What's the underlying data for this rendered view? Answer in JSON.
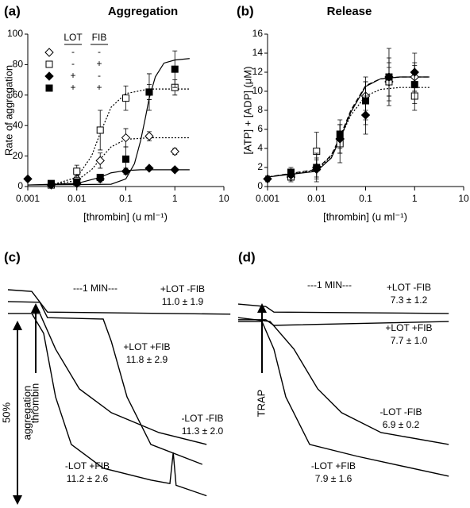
{
  "chart_data": [
    {
      "type": "scatter",
      "panel": "(a)",
      "title": "Aggregation",
      "x_label": "[thrombin] (u ml⁻¹)",
      "y_label": "Rate of aggregation",
      "log_x": true,
      "xlim": [
        0.001,
        10
      ],
      "ylim": [
        0,
        100
      ],
      "xticks": [
        0.001,
        0.01,
        0.1,
        1,
        10
      ],
      "yticks": [
        0,
        20,
        40,
        60,
        80,
        100
      ],
      "legend_headers": [
        "LOT",
        "FIB"
      ],
      "series": [
        {
          "marker": "diamond",
          "filled": false,
          "color": "#000000",
          "lot": "-",
          "fib": "-",
          "x": [
            0.01,
            0.03,
            0.1,
            0.3,
            1
          ],
          "values": [
            5,
            17,
            32,
            33,
            23
          ],
          "errors": [
            2,
            5,
            6,
            3,
            2
          ]
        },
        {
          "marker": "square",
          "filled": false,
          "color": "#000000",
          "lot": "-",
          "fib": "+",
          "x": [
            0.003,
            0.01,
            0.03,
            0.1,
            0.3,
            1
          ],
          "values": [
            1,
            10,
            37,
            58,
            62,
            65
          ],
          "errors": [
            1,
            4,
            13,
            8,
            5,
            5
          ]
        },
        {
          "marker": "diamond",
          "filled": true,
          "color": "#000000",
          "lot": "+",
          "fib": "-",
          "x": [
            0.001,
            0.003,
            0.01,
            0.03,
            0.1,
            0.3,
            1
          ],
          "values": [
            5,
            1,
            2,
            5,
            10,
            12,
            11
          ],
          "errors": [
            1,
            1,
            1,
            2,
            2,
            1,
            1
          ]
        },
        {
          "marker": "square",
          "filled": true,
          "color": "#000000",
          "lot": "+",
          "fib": "+",
          "x": [
            0.003,
            0.01,
            0.03,
            0.1,
            0.3,
            1
          ],
          "values": [
            2,
            3,
            6,
            18,
            62,
            77
          ],
          "errors": [
            1,
            2,
            2,
            8,
            12,
            12
          ]
        }
      ],
      "fits": [
        {
          "style": "dotted",
          "x": [
            0.003,
            0.01,
            0.02,
            0.03,
            0.05,
            0.1,
            0.3,
            2
          ],
          "values": [
            1,
            6,
            20,
            35,
            52,
            61,
            64,
            64
          ]
        },
        {
          "style": "dotted",
          "x": [
            0.003,
            0.01,
            0.02,
            0.03,
            0.05,
            0.1,
            0.3,
            2
          ],
          "values": [
            1,
            4,
            11,
            18,
            26,
            31,
            32,
            32
          ]
        },
        {
          "style": "solid",
          "x": [
            0.001,
            0.05,
            0.1,
            0.15,
            0.2,
            0.25,
            0.3,
            0.4,
            0.6,
            1,
            2
          ],
          "values": [
            1,
            1.5,
            5,
            15,
            30,
            45,
            58,
            72,
            81,
            83,
            84
          ]
        },
        {
          "style": "solid",
          "x": [
            0.001,
            0.01,
            0.03,
            0.05,
            0.1,
            0.2,
            2
          ],
          "values": [
            1,
            2,
            6,
            9,
            10.5,
            11,
            11
          ]
        }
      ]
    },
    {
      "type": "scatter",
      "panel": "(b)",
      "title": "Release",
      "x_label": "[thrombin] (u ml⁻¹)",
      "y_label": "[ATP] + [ADP] (μM)",
      "log_x": true,
      "xlim": [
        0.001,
        10
      ],
      "ylim": [
        0,
        16
      ],
      "xticks": [
        0.001,
        0.01,
        0.1,
        1,
        10
      ],
      "yticks": [
        0,
        2,
        4,
        6,
        8,
        10,
        12,
        14,
        16
      ],
      "series": [
        {
          "marker": "diamond",
          "filled": false,
          "color": "#000000",
          "x": [
            0.003,
            0.01,
            0.03,
            0.1,
            0.3,
            1
          ],
          "values": [
            1,
            2,
            5,
            9.5,
            11,
            11.5
          ],
          "errors": [
            0.3,
            1,
            1.5,
            1.5,
            1.5,
            1.5
          ]
        },
        {
          "marker": "square",
          "filled": false,
          "color": "#000000",
          "x": [
            0.003,
            0.01,
            0.03,
            0.1,
            0.3,
            1
          ],
          "values": [
            1,
            3.7,
            4.5,
            9,
            11,
            9.5
          ],
          "errors": [
            0.5,
            2,
            2,
            2.5,
            2,
            1.5
          ]
        },
        {
          "marker": "diamond",
          "filled": true,
          "color": "#000000",
          "x": [
            0.001,
            0.003,
            0.01,
            0.03,
            0.1,
            0.3,
            1
          ],
          "values": [
            0.8,
            1.2,
            1.8,
            5,
            7.5,
            11.5,
            12
          ],
          "errors": [
            0.3,
            0.5,
            1,
            1.5,
            2,
            2,
            2
          ]
        },
        {
          "marker": "square",
          "filled": true,
          "color": "#000000",
          "x": [
            0.003,
            0.01,
            0.03,
            0.1,
            0.3,
            1
          ],
          "values": [
            1.5,
            2,
            5.5,
            9,
            11.5,
            10.7
          ],
          "errors": [
            0.5,
            1.5,
            1.5,
            2,
            3,
            2
          ]
        }
      ],
      "fits": [
        {
          "style": "solid",
          "x": [
            0.001,
            0.01,
            0.02,
            0.03,
            0.05,
            0.1,
            0.2,
            0.5,
            2
          ],
          "values": [
            1,
            1.6,
            3,
            5,
            7.8,
            10.5,
            11.3,
            11.5,
            11.5
          ]
        },
        {
          "style": "dashed",
          "x": [
            0.001,
            0.01,
            0.02,
            0.03,
            0.05,
            0.1,
            0.2,
            0.5,
            2
          ],
          "values": [
            1,
            1.8,
            3.3,
            5.2,
            8,
            10.6,
            11.3,
            11.5,
            11.5
          ]
        },
        {
          "style": "dotted",
          "x": [
            0.001,
            0.01,
            0.02,
            0.03,
            0.05,
            0.1,
            0.2,
            0.5,
            2
          ],
          "values": [
            1,
            1.7,
            3.2,
            5,
            7.5,
            9.5,
            10.2,
            10.4,
            10.4
          ]
        }
      ]
    },
    {
      "type": "trace",
      "panel": "(c)",
      "time_label": "---1 MIN---",
      "stimulus": "thrombin",
      "xlim": [
        0,
        4.75
      ],
      "ylim": [
        62,
        0
      ],
      "scale_bar": {
        "value": 50,
        "label": "50%",
        "text": "aggregation"
      },
      "series": [
        {
          "name": "+LOT -FIB",
          "rate_label": "11.0 ± 1.9",
          "color": "#000000",
          "x": [
            0,
            0.5,
            0.83,
            4.67
          ],
          "values": [
            0,
            0.5,
            6.4,
            7
          ]
        },
        {
          "name": "+LOT +FIB",
          "rate_label": "11.8 ± 2.9",
          "color": "#000000",
          "x": [
            0,
            0.67,
            0.83,
            2,
            2.17,
            2.5,
            3,
            4.08
          ],
          "values": [
            3.4,
            3.6,
            8,
            8.4,
            14.8,
            30.7,
            44.3,
            50
          ]
        },
        {
          "name": "-LOT -FIB",
          "rate_label": "11.3 ± 2.0",
          "color": "#000000",
          "x": [
            0,
            0.67,
            1,
            1.5,
            2.17,
            3.17,
            4.17
          ],
          "values": [
            6.8,
            6.8,
            17,
            28.4,
            35.2,
            40.9,
            44.3
          ]
        },
        {
          "name": "-LOT +FIB",
          "rate_label": "11.2 ± 2.6",
          "color": "#000000",
          "x": [
            0.5,
            0.75,
            1,
            1.33,
            2,
            3,
            3.4,
            3.47,
            3.53,
            4.17
          ],
          "values": [
            6.8,
            12.5,
            30.7,
            44.3,
            51.1,
            54.5,
            55.5,
            46.6,
            56,
            59
          ]
        }
      ]
    },
    {
      "type": "trace",
      "panel": "(d)",
      "time_label": "---1 MIN---",
      "stimulus": "TRAP",
      "xlim": [
        0,
        4.75
      ],
      "ylim": [
        62,
        0
      ],
      "series": [
        {
          "name": "+LOT -FIB",
          "rate_label": "7.3 ± 1.2",
          "color": "#000000",
          "x": [
            0,
            0.58,
            0.75,
            4.42
          ],
          "values": [
            4.1,
            4.8,
            6.4,
            6.8
          ]
        },
        {
          "name": "+LOT +FIB",
          "rate_label": "7.7 ± 1.0",
          "color": "#000000",
          "x": [
            0,
            0.58,
            0.75,
            4.42
          ],
          "values": [
            8.6,
            8.6,
            10.2,
            9.1
          ]
        },
        {
          "name": "-LOT -FIB",
          "rate_label": "6.9 ± 0.2",
          "color": "#000000",
          "x": [
            0,
            0.67,
            1.17,
            1.67,
            2.17,
            3,
            4.42
          ],
          "values": [
            8,
            9.1,
            17,
            28.4,
            35.2,
            40.9,
            44.3
          ]
        },
        {
          "name": "-LOT +FIB",
          "rate_label": "7.9 ± 1.6",
          "color": "#000000",
          "x": [
            0,
            0.5,
            0.75,
            1,
            1.5,
            2.5,
            4.42
          ],
          "values": [
            9.1,
            9.1,
            17,
            30.7,
            44.3,
            47.7,
            53.4
          ]
        }
      ]
    }
  ]
}
